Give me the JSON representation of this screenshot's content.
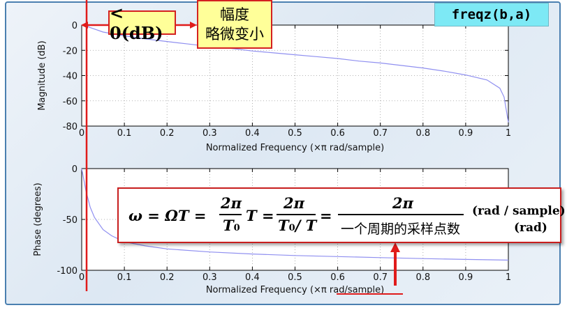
{
  "chart_data": [
    {
      "type": "line",
      "ylabel": "Magnitude (dB)",
      "xlabel": "Normalized Frequency  (×π rad/sample)",
      "xlim": [
        0,
        1
      ],
      "ylim": [
        -80,
        0
      ],
      "x_ticks": [
        "0",
        "0.1",
        "0.2",
        "0.3",
        "0.4",
        "0.5",
        "0.6",
        "0.7",
        "0.8",
        "0.9",
        "1"
      ],
      "y_ticks": [
        "0",
        "-20",
        "-40",
        "-60",
        "-80"
      ],
      "grid": true,
      "series": [
        {
          "x": [
            0,
            0.01,
            0.02,
            0.05,
            0.1,
            0.15,
            0.2,
            0.25,
            0.3,
            0.35,
            0.4,
            0.45,
            0.5,
            0.55,
            0.6,
            0.65,
            0.7,
            0.75,
            0.8,
            0.85,
            0.9,
            0.95,
            0.98,
            0.99,
            1.0
          ],
          "y": [
            0,
            -0.5,
            -2,
            -5.5,
            -8.5,
            -11,
            -13,
            -15,
            -17,
            -18.5,
            -20.5,
            -22,
            -23.5,
            -25,
            -26.5,
            -28.5,
            -30,
            -32,
            -34,
            -36.5,
            -39.5,
            -43.5,
            -50,
            -57,
            -77
          ],
          "color": "#8f8ff0"
        }
      ]
    },
    {
      "type": "line",
      "ylabel": "Phase (degrees)",
      "xlabel": "Normalized Frequency  (×π rad/sample)",
      "xlim": [
        0,
        1
      ],
      "ylim": [
        -100,
        0
      ],
      "x_ticks": [
        "0",
        "0.1",
        "0.2",
        "0.3",
        "0.4",
        "0.5",
        "0.6",
        "0.7",
        "0.8",
        "0.9",
        "1"
      ],
      "y_ticks": [
        "0",
        "-50",
        "-100"
      ],
      "grid": true,
      "series": [
        {
          "x": [
            0,
            0.01,
            0.02,
            0.03,
            0.05,
            0.07,
            0.1,
            0.15,
            0.2,
            0.3,
            0.4,
            0.5,
            0.6,
            0.7,
            0.8,
            0.9,
            1.0
          ],
          "y": [
            0,
            -22,
            -38,
            -48,
            -60,
            -66,
            -72,
            -76,
            -79,
            -82,
            -84,
            -85.5,
            -86.5,
            -87.5,
            -88.5,
            -89.3,
            -90
          ],
          "color": "#8f8ff0"
        }
      ]
    }
  ],
  "annotations": {
    "db_callout": "< 0(dB)",
    "amp_callout_line1": "幅度",
    "amp_callout_line2": "略微变小",
    "function_call": "freqz(b,a)",
    "formula": {
      "lhs": "ω = ΩT =",
      "frac1_num": "2π",
      "frac1_den": "T",
      "frac1_den_sub": "0",
      "after_frac1": "T =",
      "frac2_num": "2π",
      "frac2_den": "T",
      "frac2_den_sub": "0",
      "frac2_den_rest": "/ T",
      "equals": "=",
      "frac3_num": "2π",
      "frac3_den": "一个周期的采样点数",
      "unit1": "(rad / sample)",
      "unit2": "(rad)"
    }
  },
  "colors": {
    "accent_red": "#e01b1b",
    "curve": "#8f8ff0",
    "callout_fill": "#ffff99",
    "code_fill": "#7de9f5",
    "frame": "#4a7fb0"
  }
}
